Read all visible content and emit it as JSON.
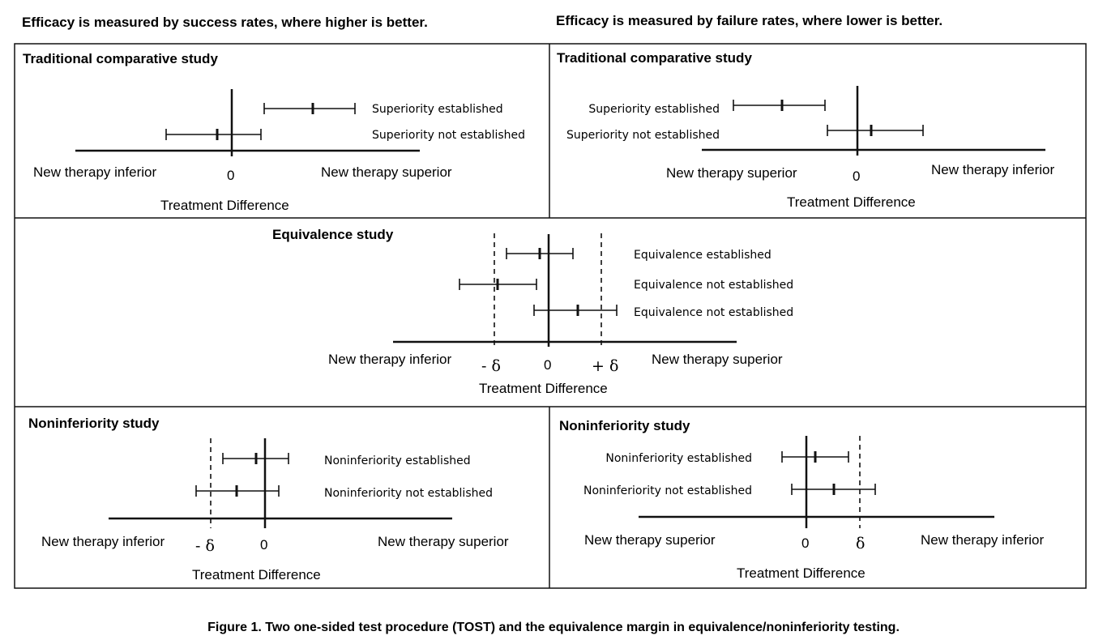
{
  "headers": {
    "left": "Efficacy is measured by success rates, where higher is better.",
    "right": "Efficacy is measured by failure rates, where lower is better."
  },
  "symbols": {
    "zero": "0",
    "minus_delta": "- δ",
    "plus_delta": "+ δ",
    "delta": "δ"
  },
  "axis_text": {
    "inferior": "New therapy inferior",
    "superior": "New therapy superior",
    "treatment_difference": "Treatment Difference"
  },
  "panels": {
    "trad_left": {
      "title": "Traditional comparative study",
      "items": [
        {
          "label": "Superiority established"
        },
        {
          "label": "Superiority not established"
        }
      ]
    },
    "trad_right": {
      "title": "Traditional comparative study",
      "items": [
        {
          "label": "Superiority established"
        },
        {
          "label": "Superiority not established"
        }
      ]
    },
    "equivalence": {
      "title": "Equivalence study",
      "items": [
        {
          "label": "Equivalence established"
        },
        {
          "label": "Equivalence not established"
        },
        {
          "label": "Equivalence not established"
        }
      ]
    },
    "noninf_left": {
      "title": "Noninferiority study",
      "items": [
        {
          "label": "Noninferiority established"
        },
        {
          "label": "Noninferiority not established"
        }
      ]
    },
    "noninf_right": {
      "title": "Noninferiority study",
      "items": [
        {
          "label": "Noninferiority established"
        },
        {
          "label": "Noninferiority not established"
        }
      ]
    }
  },
  "caption": "Figure 1.  Two one-sided test procedure (TOST) and the equivalence margin in equivalence/noninferiority testing."
}
